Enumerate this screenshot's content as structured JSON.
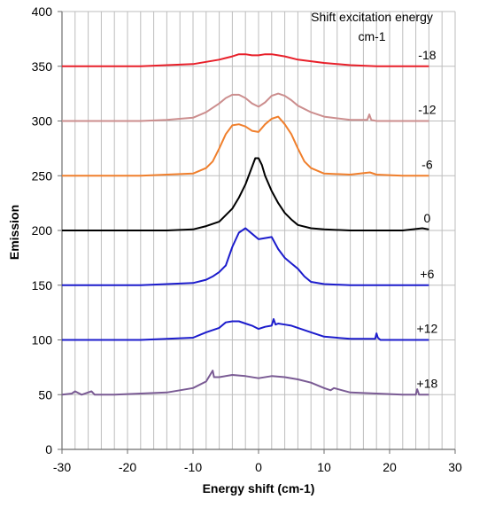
{
  "chart_data": {
    "type": "line",
    "title": "",
    "xlabel": "Energy shift (cm-1)",
    "ylabel": "Emission",
    "xlim": [
      -30,
      30
    ],
    "ylim": [
      0,
      400
    ],
    "xticks": [
      -30,
      -20,
      -10,
      0,
      10,
      20,
      30
    ],
    "yticks": [
      0,
      50,
      100,
      150,
      200,
      250,
      300,
      350,
      400
    ],
    "minor_x_step": 2,
    "grid": true,
    "legend_title": [
      "Shift excitation energy",
      "cm-1"
    ],
    "series": [
      {
        "name": "-18",
        "color": "#e8202a",
        "x": [
          -30,
          -26,
          -22,
          -18,
          -14,
          -10,
          -6,
          -4,
          -3,
          -2,
          -1,
          0,
          1,
          2,
          3,
          4,
          6,
          10,
          14,
          18,
          22,
          26
        ],
        "y": [
          350,
          350,
          350,
          350,
          351,
          352,
          356,
          359,
          361,
          361,
          360,
          360,
          361,
          361,
          360,
          359,
          356,
          353,
          351,
          350,
          350,
          350
        ]
      },
      {
        "name": "-12",
        "color": "#cc8e8e",
        "x": [
          -30,
          -26,
          -22,
          -18,
          -14,
          -10,
          -8,
          -6,
          -5,
          -4,
          -3,
          -2,
          -1,
          0,
          1,
          2,
          3,
          4,
          5,
          6,
          8,
          10,
          14,
          16.6,
          16.9,
          17.2,
          18,
          22,
          26
        ],
        "y": [
          300,
          300,
          300,
          300,
          301,
          303,
          308,
          316,
          321,
          324,
          324,
          321,
          316,
          313,
          317,
          323,
          325,
          323,
          319,
          314,
          308,
          304,
          301,
          301,
          306,
          301,
          300,
          300,
          300
        ]
      },
      {
        "name": "-6",
        "color": "#f07f2c",
        "x": [
          -30,
          -26,
          -22,
          -18,
          -14,
          -10,
          -8,
          -7,
          -6,
          -5,
          -4,
          -3,
          -2,
          -1,
          0,
          1,
          2,
          3,
          4,
          5,
          6,
          7,
          8,
          10,
          14,
          17,
          18,
          22,
          26
        ],
        "y": [
          250,
          250,
          250,
          250,
          251,
          252,
          257,
          263,
          275,
          288,
          296,
          297,
          295,
          291,
          290,
          297,
          302,
          304,
          297,
          288,
          275,
          263,
          257,
          252,
          251,
          253,
          251,
          250,
          250
        ]
      },
      {
        "name": "0",
        "color": "#000000",
        "x": [
          -30,
          -26,
          -22,
          -18,
          -14,
          -10,
          -8,
          -6,
          -5,
          -4,
          -3,
          -2,
          -1,
          -0.5,
          0,
          0.5,
          1,
          2,
          3,
          4,
          5,
          6,
          8,
          10,
          14,
          18,
          22,
          25,
          26
        ],
        "y": [
          200,
          200,
          200,
          200,
          200,
          201,
          204,
          208,
          214,
          220,
          230,
          242,
          258,
          266,
          266,
          260,
          250,
          236,
          225,
          216,
          210,
          205,
          202,
          201,
          200,
          200,
          200,
          202,
          201
        ]
      },
      {
        "name": "+6",
        "color": "#1c1ccc",
        "x": [
          -30,
          -26,
          -22,
          -18,
          -14,
          -10,
          -8,
          -7,
          -6,
          -5,
          -4,
          -3,
          -2,
          -1,
          0,
          1,
          2,
          3,
          4,
          5,
          6,
          7,
          8,
          10,
          14,
          18,
          22,
          26
        ],
        "y": [
          150,
          150,
          150,
          150,
          151,
          152,
          155,
          158,
          162,
          168,
          185,
          198,
          202,
          197,
          192,
          193,
          194,
          183,
          175,
          170,
          165,
          158,
          153,
          151,
          150,
          150,
          150,
          150
        ]
      },
      {
        "name": "+12",
        "color": "#1c1ccc",
        "x": [
          -30,
          -26,
          -22,
          -18,
          -14,
          -10,
          -8,
          -6,
          -5,
          -4,
          -3,
          -2,
          -1,
          0,
          1,
          2,
          2.3,
          2.6,
          3,
          4,
          5,
          6,
          8,
          10,
          14,
          17.8,
          18,
          18.2,
          18.6,
          22,
          26
        ],
        "y": [
          100,
          100,
          100,
          100,
          101,
          102,
          107,
          111,
          116,
          117,
          117,
          115,
          113,
          110,
          112,
          113,
          119,
          114,
          115,
          114,
          113,
          111,
          107,
          103,
          101,
          101,
          106,
          102,
          100,
          100,
          100
        ]
      },
      {
        "name": "+18",
        "color": "#7a5b94",
        "x": [
          -30,
          -28.5,
          -28,
          -27,
          -25.5,
          -25,
          -22,
          -18,
          -14,
          -10,
          -8,
          -7.2,
          -7,
          -6.8,
          -6,
          -4,
          -2,
          0,
          2,
          4,
          6,
          8,
          10,
          11,
          11.5,
          14,
          18,
          22,
          24,
          24.2,
          24.5,
          26
        ],
        "y": [
          50,
          51,
          53,
          50,
          53,
          50,
          50,
          51,
          52,
          56,
          62,
          70,
          72,
          66,
          66,
          68,
          67,
          65,
          67,
          66,
          64,
          61,
          56,
          54,
          56,
          52,
          51,
          50,
          50,
          55,
          50,
          50
        ]
      }
    ]
  }
}
